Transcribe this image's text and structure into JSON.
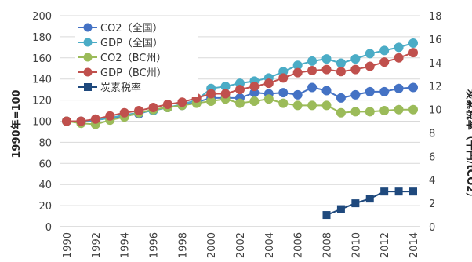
{
  "chart_data": {
    "type": "line",
    "x": [
      1990,
      1991,
      1992,
      1993,
      1994,
      1995,
      1996,
      1997,
      1998,
      1999,
      2000,
      2001,
      2002,
      2003,
      2004,
      2005,
      2006,
      2007,
      2008,
      2009,
      2010,
      2011,
      2012,
      2013,
      2014
    ],
    "x_tick_labels": [
      "1990",
      "1992",
      "1994",
      "1996",
      "1998",
      "2000",
      "2002",
      "2004",
      "2006",
      "2008",
      "2010",
      "2012",
      "2014"
    ],
    "ylabel_left": "1990年=100",
    "ylim_left": [
      0,
      200
    ],
    "y_ticks_left": [
      "0",
      "20",
      "40",
      "60",
      "80",
      "100",
      "120",
      "140",
      "160",
      "180",
      "200"
    ],
    "ylabel_right": "炭素税率（千円/tCO2）",
    "ylim_right": [
      0,
      18
    ],
    "y_ticks_right": [
      "0",
      "2",
      "4",
      "6",
      "8",
      "10",
      "12",
      "14",
      "16",
      "18"
    ],
    "legend_position": "top-left",
    "series": [
      {
        "name": "CO2（全国）",
        "axis": "left",
        "marker": "circle",
        "color": "#4472c4",
        "values": [
          100,
          99,
          101,
          103,
          105,
          107,
          111,
          113,
          115,
          118,
          122,
          122,
          122,
          127,
          126,
          127,
          125,
          132,
          129,
          122,
          125,
          128,
          128,
          131,
          132
        ]
      },
      {
        "name": "GDP（全国）",
        "axis": "left",
        "marker": "circle",
        "color": "#4bacc6",
        "values": [
          100,
          100,
          101,
          103,
          106,
          108,
          110,
          113,
          116,
          120,
          131,
          133,
          136,
          138,
          141,
          147,
          153,
          157,
          159,
          155,
          159,
          164,
          167,
          170,
          174
        ]
      },
      {
        "name": "CO2（BC州）",
        "axis": "left",
        "marker": "circle",
        "color": "#9bbb59",
        "values": [
          100,
          98,
          97,
          101,
          104,
          108,
          111,
          113,
          115,
          117,
          119,
          121,
          117,
          119,
          121,
          117,
          115,
          115,
          115,
          108,
          109,
          109,
          110,
          111,
          111
        ]
      },
      {
        "name": "GDP（BC州）",
        "axis": "left",
        "marker": "circle",
        "color": "#c0504d",
        "values": [
          100,
          100,
          102,
          105,
          108,
          110,
          113,
          116,
          118,
          122,
          126,
          126,
          130,
          133,
          136,
          141,
          146,
          148,
          149,
          147,
          149,
          152,
          156,
          160,
          165
        ]
      },
      {
        "name": "炭素税率",
        "axis": "right",
        "marker": "square",
        "color": "#1f497d",
        "x": [
          2008,
          2009,
          2010,
          2011,
          2012,
          2013,
          2014
        ],
        "values": [
          1,
          1.5,
          2,
          2.4,
          3,
          3,
          3
        ]
      }
    ]
  }
}
